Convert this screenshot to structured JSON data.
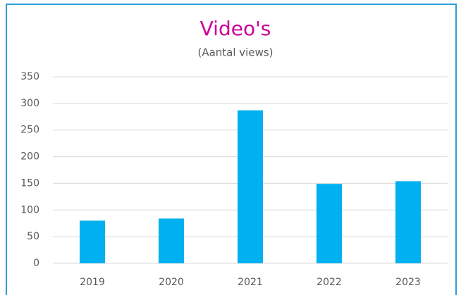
{
  "chart_data": {
    "type": "bar",
    "title": "Video's",
    "subtitle": "(Aantal views)",
    "categories": [
      "2019",
      "2020",
      "2021",
      "2022",
      "2023"
    ],
    "values": [
      80,
      84,
      287,
      149,
      154
    ],
    "color": "#00b0f0",
    "ylim": [
      0,
      350
    ],
    "yticks": [
      0,
      50,
      100,
      150,
      200,
      250,
      300,
      350
    ],
    "grid": true
  }
}
